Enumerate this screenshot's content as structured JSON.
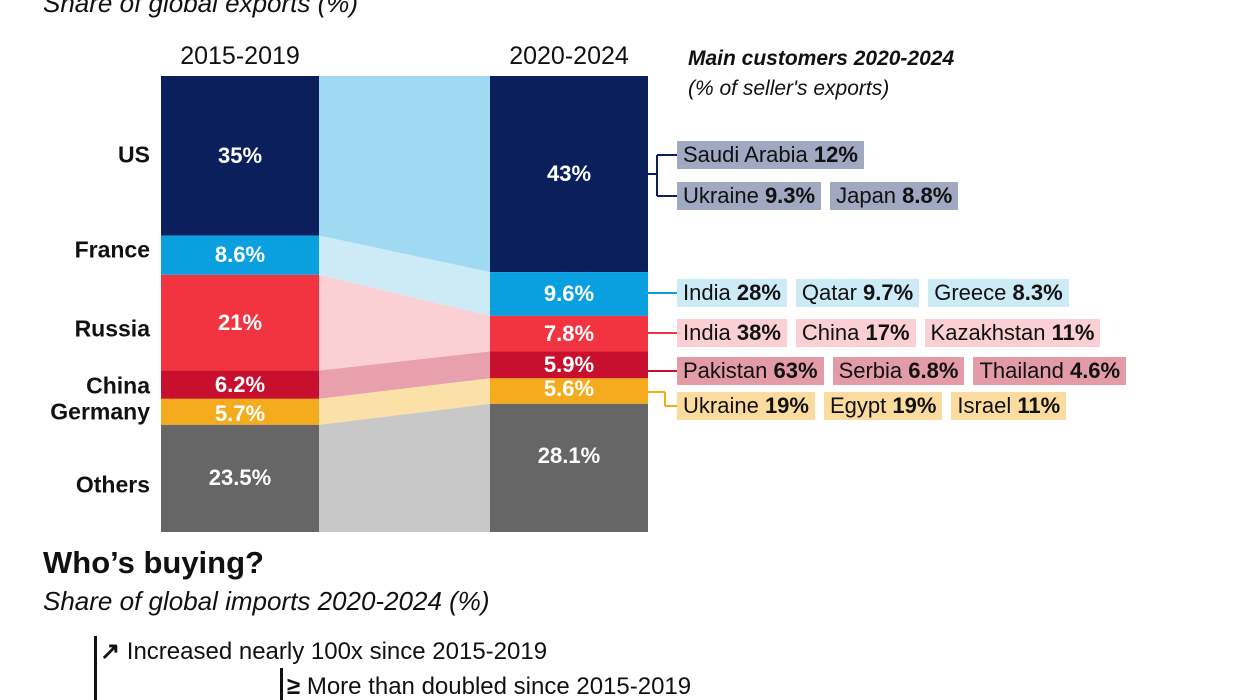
{
  "header": {
    "subtitle": "Share of global exports (%)"
  },
  "chart_data": {
    "type": "stacked-bar-flow",
    "columns": [
      "2015-2019",
      "2020-2024"
    ],
    "categories": [
      "US",
      "France",
      "Russia",
      "China",
      "Germany",
      "Others"
    ],
    "series": [
      {
        "name": "2015-2019",
        "values": [
          35,
          8.6,
          21,
          6.2,
          5.7,
          23.5
        ],
        "labels": [
          "35%",
          "8.6%",
          "21%",
          "6.2%",
          "5.7%",
          "23.5%"
        ]
      },
      {
        "name": "2020-2024",
        "values": [
          43,
          9.6,
          7.8,
          5.9,
          5.6,
          28.1
        ],
        "labels": [
          "43%",
          "9.6%",
          "7.8%",
          "5.9%",
          "5.6%",
          "28.1%"
        ]
      }
    ],
    "colors": [
      "#0a1f5c",
      "#0aa0e0",
      "#f23340",
      "#c8102e",
      "#f5ab1e",
      "#666666"
    ],
    "flow_colors": [
      "#9fd9f2",
      "#cdeaf7",
      "#fbd0d4",
      "#e8a0ac",
      "#fbe0a8",
      "#c8c8c8"
    ]
  },
  "customers": {
    "title": "Main customers 2020-2024",
    "note": "(% of seller's exports)",
    "groups": [
      {
        "seller": "US",
        "color": "#a0a8c2",
        "rows": [
          [
            {
              "country": "Saudi Arabia",
              "value": "12%"
            }
          ],
          [
            {
              "country": "Ukraine",
              "value": "9.3%"
            },
            {
              "country": "Japan",
              "value": "8.8%"
            }
          ]
        ]
      },
      {
        "seller": "France",
        "color": "#cdeaf7",
        "rows": [
          [
            {
              "country": "India",
              "value": "28%"
            },
            {
              "country": "Qatar",
              "value": "9.7%"
            },
            {
              "country": "Greece",
              "value": "8.3%"
            }
          ]
        ]
      },
      {
        "seller": "Russia",
        "color": "#fbd0d4",
        "rows": [
          [
            {
              "country": "India",
              "value": "38%"
            },
            {
              "country": "China",
              "value": "17%"
            },
            {
              "country": "Kazakhstan",
              "value": "11%"
            }
          ]
        ]
      },
      {
        "seller": "China",
        "color": "#e39ba7",
        "rows": [
          [
            {
              "country": "Pakistan",
              "value": "63%"
            },
            {
              "country": "Serbia",
              "value": "6.8%"
            },
            {
              "country": "Thailand",
              "value": "4.6%"
            }
          ]
        ]
      },
      {
        "seller": "Germany",
        "color": "#fbdc9e",
        "rows": [
          [
            {
              "country": "Ukraine",
              "value": "19%"
            },
            {
              "country": "Egypt",
              "value": "19%"
            },
            {
              "country": "Israel",
              "value": "11%"
            }
          ]
        ]
      }
    ]
  },
  "buying": {
    "title": "Who’s buying?",
    "subtitle": "Share of global imports 2020-2024 (%)",
    "legend": [
      {
        "icon": "trend-up-icon",
        "symbol": "↗",
        "label": "Increased nearly 100x since 2015-2019"
      },
      {
        "icon": "greater-equal-icon",
        "symbol": "≥",
        "label": "More than doubled since 2015-2019"
      }
    ]
  }
}
